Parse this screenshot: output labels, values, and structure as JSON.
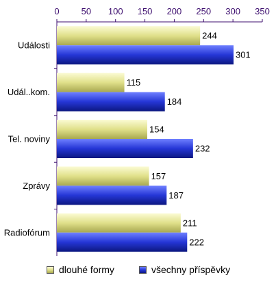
{
  "chart_data": {
    "type": "bar",
    "orientation": "horizontal",
    "categories": [
      "Události",
      "Udál..kom.",
      "Tel. noviny",
      "Zprávy",
      "Radiofórum"
    ],
    "series": [
      {
        "name": "dlouhé formy",
        "values": [
          244,
          115,
          154,
          157,
          211
        ],
        "color": "#e8e8a0"
      },
      {
        "name": "všechny příspěvky",
        "values": [
          301,
          184,
          232,
          187,
          222
        ],
        "color": "#2a3fd0"
      }
    ],
    "xlim": [
      0,
      350
    ],
    "xticks": [
      "0",
      "50",
      "100",
      "150",
      "200",
      "250",
      "300",
      "350"
    ],
    "tick_position": "top",
    "legend_position": "bottom",
    "grid": false,
    "data_labels": true
  }
}
